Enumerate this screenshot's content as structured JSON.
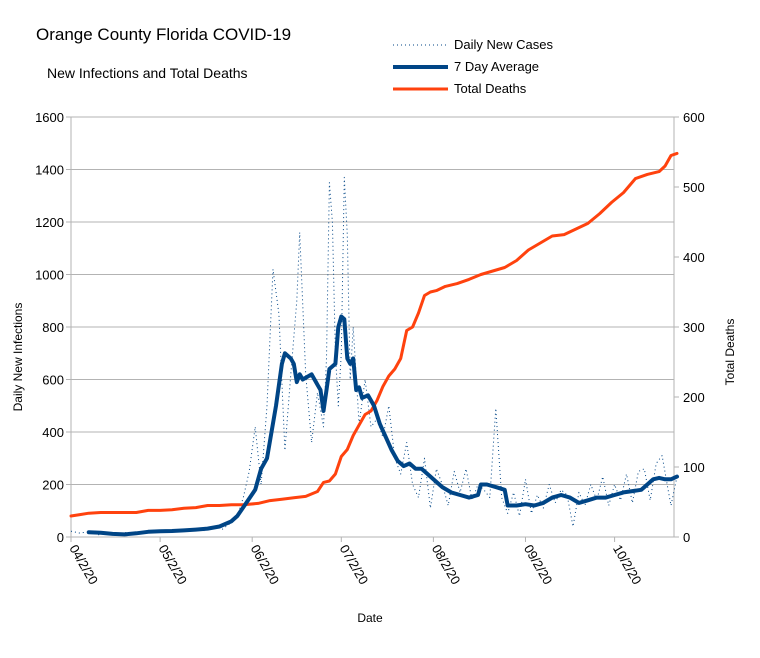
{
  "chart_data": {
    "type": "line",
    "title": "Orange County Florida COVID-19",
    "subtitle": "New Infections and Total Deaths",
    "xlabel": "Date",
    "ylabel": "Daily New Infections",
    "y2label": "Total Deaths",
    "ylim": [
      0,
      1600
    ],
    "y2lim": [
      0,
      600
    ],
    "xlim": [
      "2020-04-02",
      "2020-10-22"
    ],
    "yticks": [
      "0",
      "200",
      "400",
      "600",
      "800",
      "1000",
      "1200",
      "1400",
      "1600"
    ],
    "y2ticks": [
      "0",
      "100",
      "200",
      "300",
      "400",
      "500",
      "600"
    ],
    "xticks": [
      {
        "label": "04/2/20",
        "date": "2020-04-02"
      },
      {
        "label": "05/2/20",
        "date": "2020-05-02"
      },
      {
        "label": "06/2/20",
        "date": "2020-06-02"
      },
      {
        "label": "07/2/20",
        "date": "2020-07-02"
      },
      {
        "label": "08/2/20",
        "date": "2020-08-02"
      },
      {
        "label": "09/2/20",
        "date": "2020-09-02"
      },
      {
        "label": "10/2/20",
        "date": "2020-10-02"
      }
    ],
    "grid": true,
    "legend_position": "top-right",
    "series": [
      {
        "name": "Daily New Cases",
        "axis": "left",
        "color": "#004586",
        "style": "dotted",
        "points": [
          [
            "2020-04-02",
            22
          ],
          [
            "2020-04-05",
            15
          ],
          [
            "2020-04-08",
            20
          ],
          [
            "2020-04-11",
            8
          ],
          [
            "2020-04-14",
            14
          ],
          [
            "2020-04-17",
            6
          ],
          [
            "2020-04-20",
            18
          ],
          [
            "2020-04-23",
            12
          ],
          [
            "2020-04-26",
            20
          ],
          [
            "2020-04-29",
            16
          ],
          [
            "2020-05-02",
            25
          ],
          [
            "2020-05-05",
            18
          ],
          [
            "2020-05-08",
            28
          ],
          [
            "2020-05-11",
            22
          ],
          [
            "2020-05-14",
            30
          ],
          [
            "2020-05-17",
            24
          ],
          [
            "2020-05-20",
            40
          ],
          [
            "2020-05-23",
            30
          ],
          [
            "2020-05-26",
            55
          ],
          [
            "2020-05-28",
            80
          ],
          [
            "2020-05-30",
            150
          ],
          [
            "2020-06-01",
            250
          ],
          [
            "2020-06-03",
            420
          ],
          [
            "2020-06-05",
            200
          ],
          [
            "2020-06-07",
            500
          ],
          [
            "2020-06-09",
            1020
          ],
          [
            "2020-06-11",
            850
          ],
          [
            "2020-06-13",
            330
          ],
          [
            "2020-06-15",
            620
          ],
          [
            "2020-06-17",
            900
          ],
          [
            "2020-06-18",
            1160
          ],
          [
            "2020-06-20",
            620
          ],
          [
            "2020-06-22",
            360
          ],
          [
            "2020-06-24",
            550
          ],
          [
            "2020-06-26",
            420
          ],
          [
            "2020-06-27",
            680
          ],
          [
            "2020-06-28",
            1350
          ],
          [
            "2020-06-29",
            1200
          ],
          [
            "2020-06-30",
            700
          ],
          [
            "2020-07-01",
            500
          ],
          [
            "2020-07-02",
            700
          ],
          [
            "2020-07-03",
            1370
          ],
          [
            "2020-07-04",
            1150
          ],
          [
            "2020-07-05",
            600
          ],
          [
            "2020-07-06",
            800
          ],
          [
            "2020-07-08",
            430
          ],
          [
            "2020-07-10",
            600
          ],
          [
            "2020-07-12",
            420
          ],
          [
            "2020-07-14",
            450
          ],
          [
            "2020-07-16",
            380
          ],
          [
            "2020-07-18",
            500
          ],
          [
            "2020-07-20",
            300
          ],
          [
            "2020-07-22",
            240
          ],
          [
            "2020-07-24",
            360
          ],
          [
            "2020-07-26",
            200
          ],
          [
            "2020-07-28",
            150
          ],
          [
            "2020-07-30",
            300
          ],
          [
            "2020-08-01",
            110
          ],
          [
            "2020-08-03",
            260
          ],
          [
            "2020-08-05",
            200
          ],
          [
            "2020-08-07",
            120
          ],
          [
            "2020-08-09",
            250
          ],
          [
            "2020-08-11",
            170
          ],
          [
            "2020-08-13",
            260
          ],
          [
            "2020-08-15",
            140
          ],
          [
            "2020-08-17",
            200
          ],
          [
            "2020-08-19",
            180
          ],
          [
            "2020-08-21",
            150
          ],
          [
            "2020-08-23",
            490
          ],
          [
            "2020-08-25",
            150
          ],
          [
            "2020-08-27",
            90
          ],
          [
            "2020-08-29",
            170
          ],
          [
            "2020-08-31",
            80
          ],
          [
            "2020-09-02",
            220
          ],
          [
            "2020-09-04",
            90
          ],
          [
            "2020-09-06",
            160
          ],
          [
            "2020-09-08",
            110
          ],
          [
            "2020-09-10",
            200
          ],
          [
            "2020-09-12",
            130
          ],
          [
            "2020-09-14",
            180
          ],
          [
            "2020-09-16",
            160
          ],
          [
            "2020-09-18",
            40
          ],
          [
            "2020-09-20",
            170
          ],
          [
            "2020-09-22",
            120
          ],
          [
            "2020-09-24",
            200
          ],
          [
            "2020-09-26",
            140
          ],
          [
            "2020-09-28",
            230
          ],
          [
            "2020-09-30",
            120
          ],
          [
            "2020-10-02",
            200
          ],
          [
            "2020-10-04",
            140
          ],
          [
            "2020-10-06",
            240
          ],
          [
            "2020-10-08",
            130
          ],
          [
            "2020-10-10",
            250
          ],
          [
            "2020-10-12",
            260
          ],
          [
            "2020-10-14",
            140
          ],
          [
            "2020-10-16",
            280
          ],
          [
            "2020-10-18",
            310
          ],
          [
            "2020-10-20",
            180
          ],
          [
            "2020-10-21",
            120
          ],
          [
            "2020-10-23",
            230
          ]
        ]
      },
      {
        "name": "7 Day Average",
        "axis": "left",
        "color": "#004586",
        "style": "solid-thick",
        "points": [
          [
            "2020-04-08",
            18
          ],
          [
            "2020-04-12",
            16
          ],
          [
            "2020-04-16",
            12
          ],
          [
            "2020-04-20",
            10
          ],
          [
            "2020-04-24",
            14
          ],
          [
            "2020-04-28",
            20
          ],
          [
            "2020-05-02",
            22
          ],
          [
            "2020-05-06",
            23
          ],
          [
            "2020-05-10",
            25
          ],
          [
            "2020-05-14",
            28
          ],
          [
            "2020-05-18",
            32
          ],
          [
            "2020-05-22",
            40
          ],
          [
            "2020-05-26",
            60
          ],
          [
            "2020-05-28",
            80
          ],
          [
            "2020-05-31",
            130
          ],
          [
            "2020-06-03",
            180
          ],
          [
            "2020-06-05",
            260
          ],
          [
            "2020-06-07",
            300
          ],
          [
            "2020-06-10",
            500
          ],
          [
            "2020-06-12",
            660
          ],
          [
            "2020-06-13",
            700
          ],
          [
            "2020-06-15",
            680
          ],
          [
            "2020-06-16",
            660
          ],
          [
            "2020-06-17",
            590
          ],
          [
            "2020-06-18",
            620
          ],
          [
            "2020-06-19",
            600
          ],
          [
            "2020-06-22",
            620
          ],
          [
            "2020-06-24",
            580
          ],
          [
            "2020-06-25",
            560
          ],
          [
            "2020-06-26",
            480
          ],
          [
            "2020-06-27",
            560
          ],
          [
            "2020-06-28",
            640
          ],
          [
            "2020-06-29",
            650
          ],
          [
            "2020-06-30",
            660
          ],
          [
            "2020-07-01",
            800
          ],
          [
            "2020-07-02",
            840
          ],
          [
            "2020-07-03",
            830
          ],
          [
            "2020-07-04",
            680
          ],
          [
            "2020-07-05",
            660
          ],
          [
            "2020-07-06",
            680
          ],
          [
            "2020-07-07",
            560
          ],
          [
            "2020-07-08",
            570
          ],
          [
            "2020-07-09",
            530
          ],
          [
            "2020-07-11",
            540
          ],
          [
            "2020-07-13",
            500
          ],
          [
            "2020-07-15",
            430
          ],
          [
            "2020-07-17",
            380
          ],
          [
            "2020-07-19",
            330
          ],
          [
            "2020-07-21",
            290
          ],
          [
            "2020-07-23",
            270
          ],
          [
            "2020-07-25",
            280
          ],
          [
            "2020-07-27",
            260
          ],
          [
            "2020-07-29",
            260
          ],
          [
            "2020-07-31",
            240
          ],
          [
            "2020-08-02",
            220
          ],
          [
            "2020-08-05",
            190
          ],
          [
            "2020-08-08",
            170
          ],
          [
            "2020-08-11",
            160
          ],
          [
            "2020-08-14",
            150
          ],
          [
            "2020-08-17",
            160
          ],
          [
            "2020-08-18",
            200
          ],
          [
            "2020-08-20",
            200
          ],
          [
            "2020-08-23",
            190
          ],
          [
            "2020-08-26",
            180
          ],
          [
            "2020-08-27",
            120
          ],
          [
            "2020-08-30",
            120
          ],
          [
            "2020-09-02",
            125
          ],
          [
            "2020-09-05",
            120
          ],
          [
            "2020-09-08",
            130
          ],
          [
            "2020-09-11",
            150
          ],
          [
            "2020-09-14",
            160
          ],
          [
            "2020-09-17",
            150
          ],
          [
            "2020-09-20",
            130
          ],
          [
            "2020-09-23",
            140
          ],
          [
            "2020-09-26",
            150
          ],
          [
            "2020-09-29",
            150
          ],
          [
            "2020-10-02",
            160
          ],
          [
            "2020-10-05",
            170
          ],
          [
            "2020-10-08",
            175
          ],
          [
            "2020-10-11",
            180
          ],
          [
            "2020-10-13",
            200
          ],
          [
            "2020-10-15",
            220
          ],
          [
            "2020-10-17",
            225
          ],
          [
            "2020-10-19",
            220
          ],
          [
            "2020-10-21",
            220
          ],
          [
            "2020-10-23",
            230
          ]
        ]
      },
      {
        "name": "Total Deaths",
        "axis": "right",
        "color": "#ff420e",
        "style": "solid-thick",
        "points": [
          [
            "2020-04-02",
            30
          ],
          [
            "2020-04-05",
            32
          ],
          [
            "2020-04-08",
            34
          ],
          [
            "2020-04-12",
            35
          ],
          [
            "2020-04-18",
            35
          ],
          [
            "2020-04-24",
            35
          ],
          [
            "2020-04-28",
            38
          ],
          [
            "2020-05-02",
            38
          ],
          [
            "2020-05-06",
            39
          ],
          [
            "2020-05-10",
            41
          ],
          [
            "2020-05-14",
            42
          ],
          [
            "2020-05-18",
            45
          ],
          [
            "2020-05-22",
            45
          ],
          [
            "2020-05-26",
            46
          ],
          [
            "2020-05-30",
            46
          ],
          [
            "2020-06-04",
            48
          ],
          [
            "2020-06-08",
            52
          ],
          [
            "2020-06-12",
            54
          ],
          [
            "2020-06-16",
            56
          ],
          [
            "2020-06-20",
            58
          ],
          [
            "2020-06-24",
            65
          ],
          [
            "2020-06-26",
            78
          ],
          [
            "2020-06-28",
            80
          ],
          [
            "2020-06-30",
            90
          ],
          [
            "2020-07-02",
            115
          ],
          [
            "2020-07-04",
            125
          ],
          [
            "2020-07-06",
            145
          ],
          [
            "2020-07-08",
            160
          ],
          [
            "2020-07-10",
            175
          ],
          [
            "2020-07-12",
            180
          ],
          [
            "2020-07-14",
            195
          ],
          [
            "2020-07-16",
            215
          ],
          [
            "2020-07-18",
            230
          ],
          [
            "2020-07-20",
            240
          ],
          [
            "2020-07-22",
            255
          ],
          [
            "2020-07-24",
            295
          ],
          [
            "2020-07-26",
            300
          ],
          [
            "2020-07-28",
            320
          ],
          [
            "2020-07-30",
            345
          ],
          [
            "2020-08-01",
            350
          ],
          [
            "2020-08-03",
            352
          ],
          [
            "2020-08-06",
            358
          ],
          [
            "2020-08-10",
            362
          ],
          [
            "2020-08-14",
            368
          ],
          [
            "2020-08-18",
            375
          ],
          [
            "2020-08-22",
            380
          ],
          [
            "2020-08-26",
            385
          ],
          [
            "2020-08-30",
            395
          ],
          [
            "2020-09-03",
            410
          ],
          [
            "2020-09-07",
            420
          ],
          [
            "2020-09-11",
            430
          ],
          [
            "2020-09-15",
            432
          ],
          [
            "2020-09-19",
            440
          ],
          [
            "2020-09-23",
            448
          ],
          [
            "2020-09-27",
            462
          ],
          [
            "2020-10-01",
            478
          ],
          [
            "2020-10-05",
            492
          ],
          [
            "2020-10-09",
            512
          ],
          [
            "2020-10-13",
            518
          ],
          [
            "2020-10-17",
            522
          ],
          [
            "2020-10-19",
            530
          ],
          [
            "2020-10-21",
            545
          ],
          [
            "2020-10-23",
            548
          ]
        ]
      }
    ]
  }
}
